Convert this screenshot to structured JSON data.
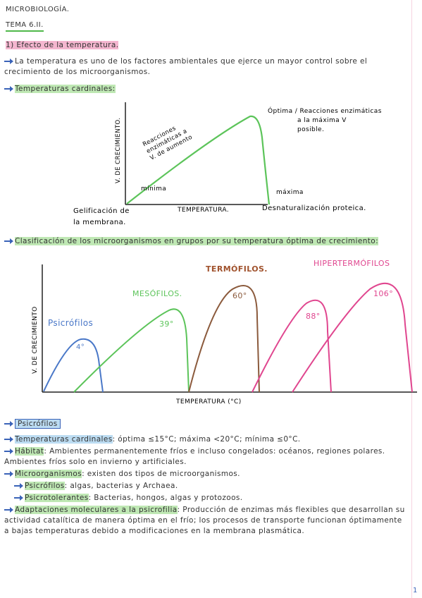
{
  "header": {
    "subject": "MICROBIOLOGÍA.",
    "topic": "TEMA 6.II."
  },
  "section_title": "1) Efecto de la temperatura.",
  "intro": "La temperatura es uno de los factores ambientales que ejerce un mayor control sobre el crecimiento de los microorganismos.",
  "cardinal_heading": "Temperaturas cardinales:",
  "diagram_1": {
    "y_label": "V. DE CRECIMIENTO.",
    "x_label": "TEMPERATURA.",
    "curve_label": [
      "Reacciones",
      "enzimáticas a",
      "V. de aumento"
    ],
    "optimum_label": [
      "Óptima / Reacciones enzimáticas",
      "a la máxima V",
      "posible."
    ],
    "min_label": "mínima",
    "max_label": "máxima",
    "below_min": [
      "Gelificación de",
      "la membrana."
    ],
    "below_max": "Desnaturalización proteica."
  },
  "classification_heading": "Clasificación de los microorganismos en grupos por su temperatura óptima de crecimiento:",
  "diagram_2": {
    "y_label": "V. DE CRECIMIENTO",
    "x_label": "TEMPERATURA (°C)",
    "groups": [
      {
        "name": "Psicrófilos",
        "optima": [
          "4°"
        ]
      },
      {
        "name": "MESÓFILOS.",
        "optima": [
          "39°"
        ]
      },
      {
        "name": "TERMÓFILOS.",
        "optima": [
          "60°"
        ]
      },
      {
        "name": "HIPERTERMÓFILOS",
        "optima": [
          "88°",
          "106°"
        ]
      }
    ]
  },
  "psychrophiles": {
    "title": "Psicrófilos",
    "items": [
      {
        "term": "Temperaturas cardinales",
        "text": ": óptima ≤15°C; máxima <20°C; mínima ≤0°C."
      },
      {
        "term": "Hábitat",
        "text": ": Ambientes permanentemente fríos e incluso congelados: océanos, regiones polares. Ambientes fríos solo en invierno y artificiales."
      },
      {
        "term": "Microorganismos",
        "text": ": existen dos tipos de microorganismos."
      },
      {
        "term": "Psicrófilos",
        "text": ": algas, bacterias y Archaea."
      },
      {
        "term": "Psicrotolerantes",
        "text": ": Bacterias, hongos, algas y protozoos."
      },
      {
        "term": "Adaptaciones moleculares a la psicrofilia",
        "text": ": Producción de enzimas más flexibles que desarrollan su actividad catalítica de manera óptima en el frío; los procesos de transporte funcionan óptimamente a bajas temperaturas debido a modificaciones en la membrana plasmática."
      }
    ]
  },
  "page_number": "1"
}
